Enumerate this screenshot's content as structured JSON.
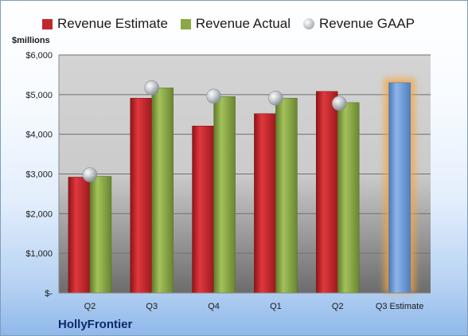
{
  "chart_data": {
    "type": "bar",
    "categories": [
      "Q2",
      "Q3",
      "Q4",
      "Q1",
      "Q2",
      "Q3 Estimate"
    ],
    "series": [
      {
        "name": "Revenue Estimate",
        "type": "bar",
        "color": "#c0282d",
        "values": [
          2920,
          4910,
          4210,
          4520,
          5080,
          5300
        ]
      },
      {
        "name": "Revenue Actual",
        "type": "bar",
        "color": "#8aa844",
        "values": [
          2940,
          5170,
          4950,
          4910,
          4800,
          null
        ]
      },
      {
        "name": "Revenue GAAP",
        "type": "bubble",
        "color": "#b7bcc3",
        "values": [
          2980,
          5170,
          4960,
          4910,
          4780,
          null
        ]
      }
    ],
    "estimate_highlight": {
      "category_index": 5,
      "bar_color": "#6d9bd6",
      "glow_color": "#f4a640"
    },
    "ylabel": "$millions",
    "ylim": [
      0,
      6000
    ],
    "yticks": [
      0,
      1000,
      2000,
      3000,
      4000,
      5000,
      6000
    ],
    "ytick_labels": [
      "$-",
      "$1,000",
      "$2,000",
      "$3,000",
      "$4,000",
      "$5,000",
      "$6,000"
    ],
    "grid": true,
    "legend": "top",
    "company": "HollyFrontier"
  }
}
